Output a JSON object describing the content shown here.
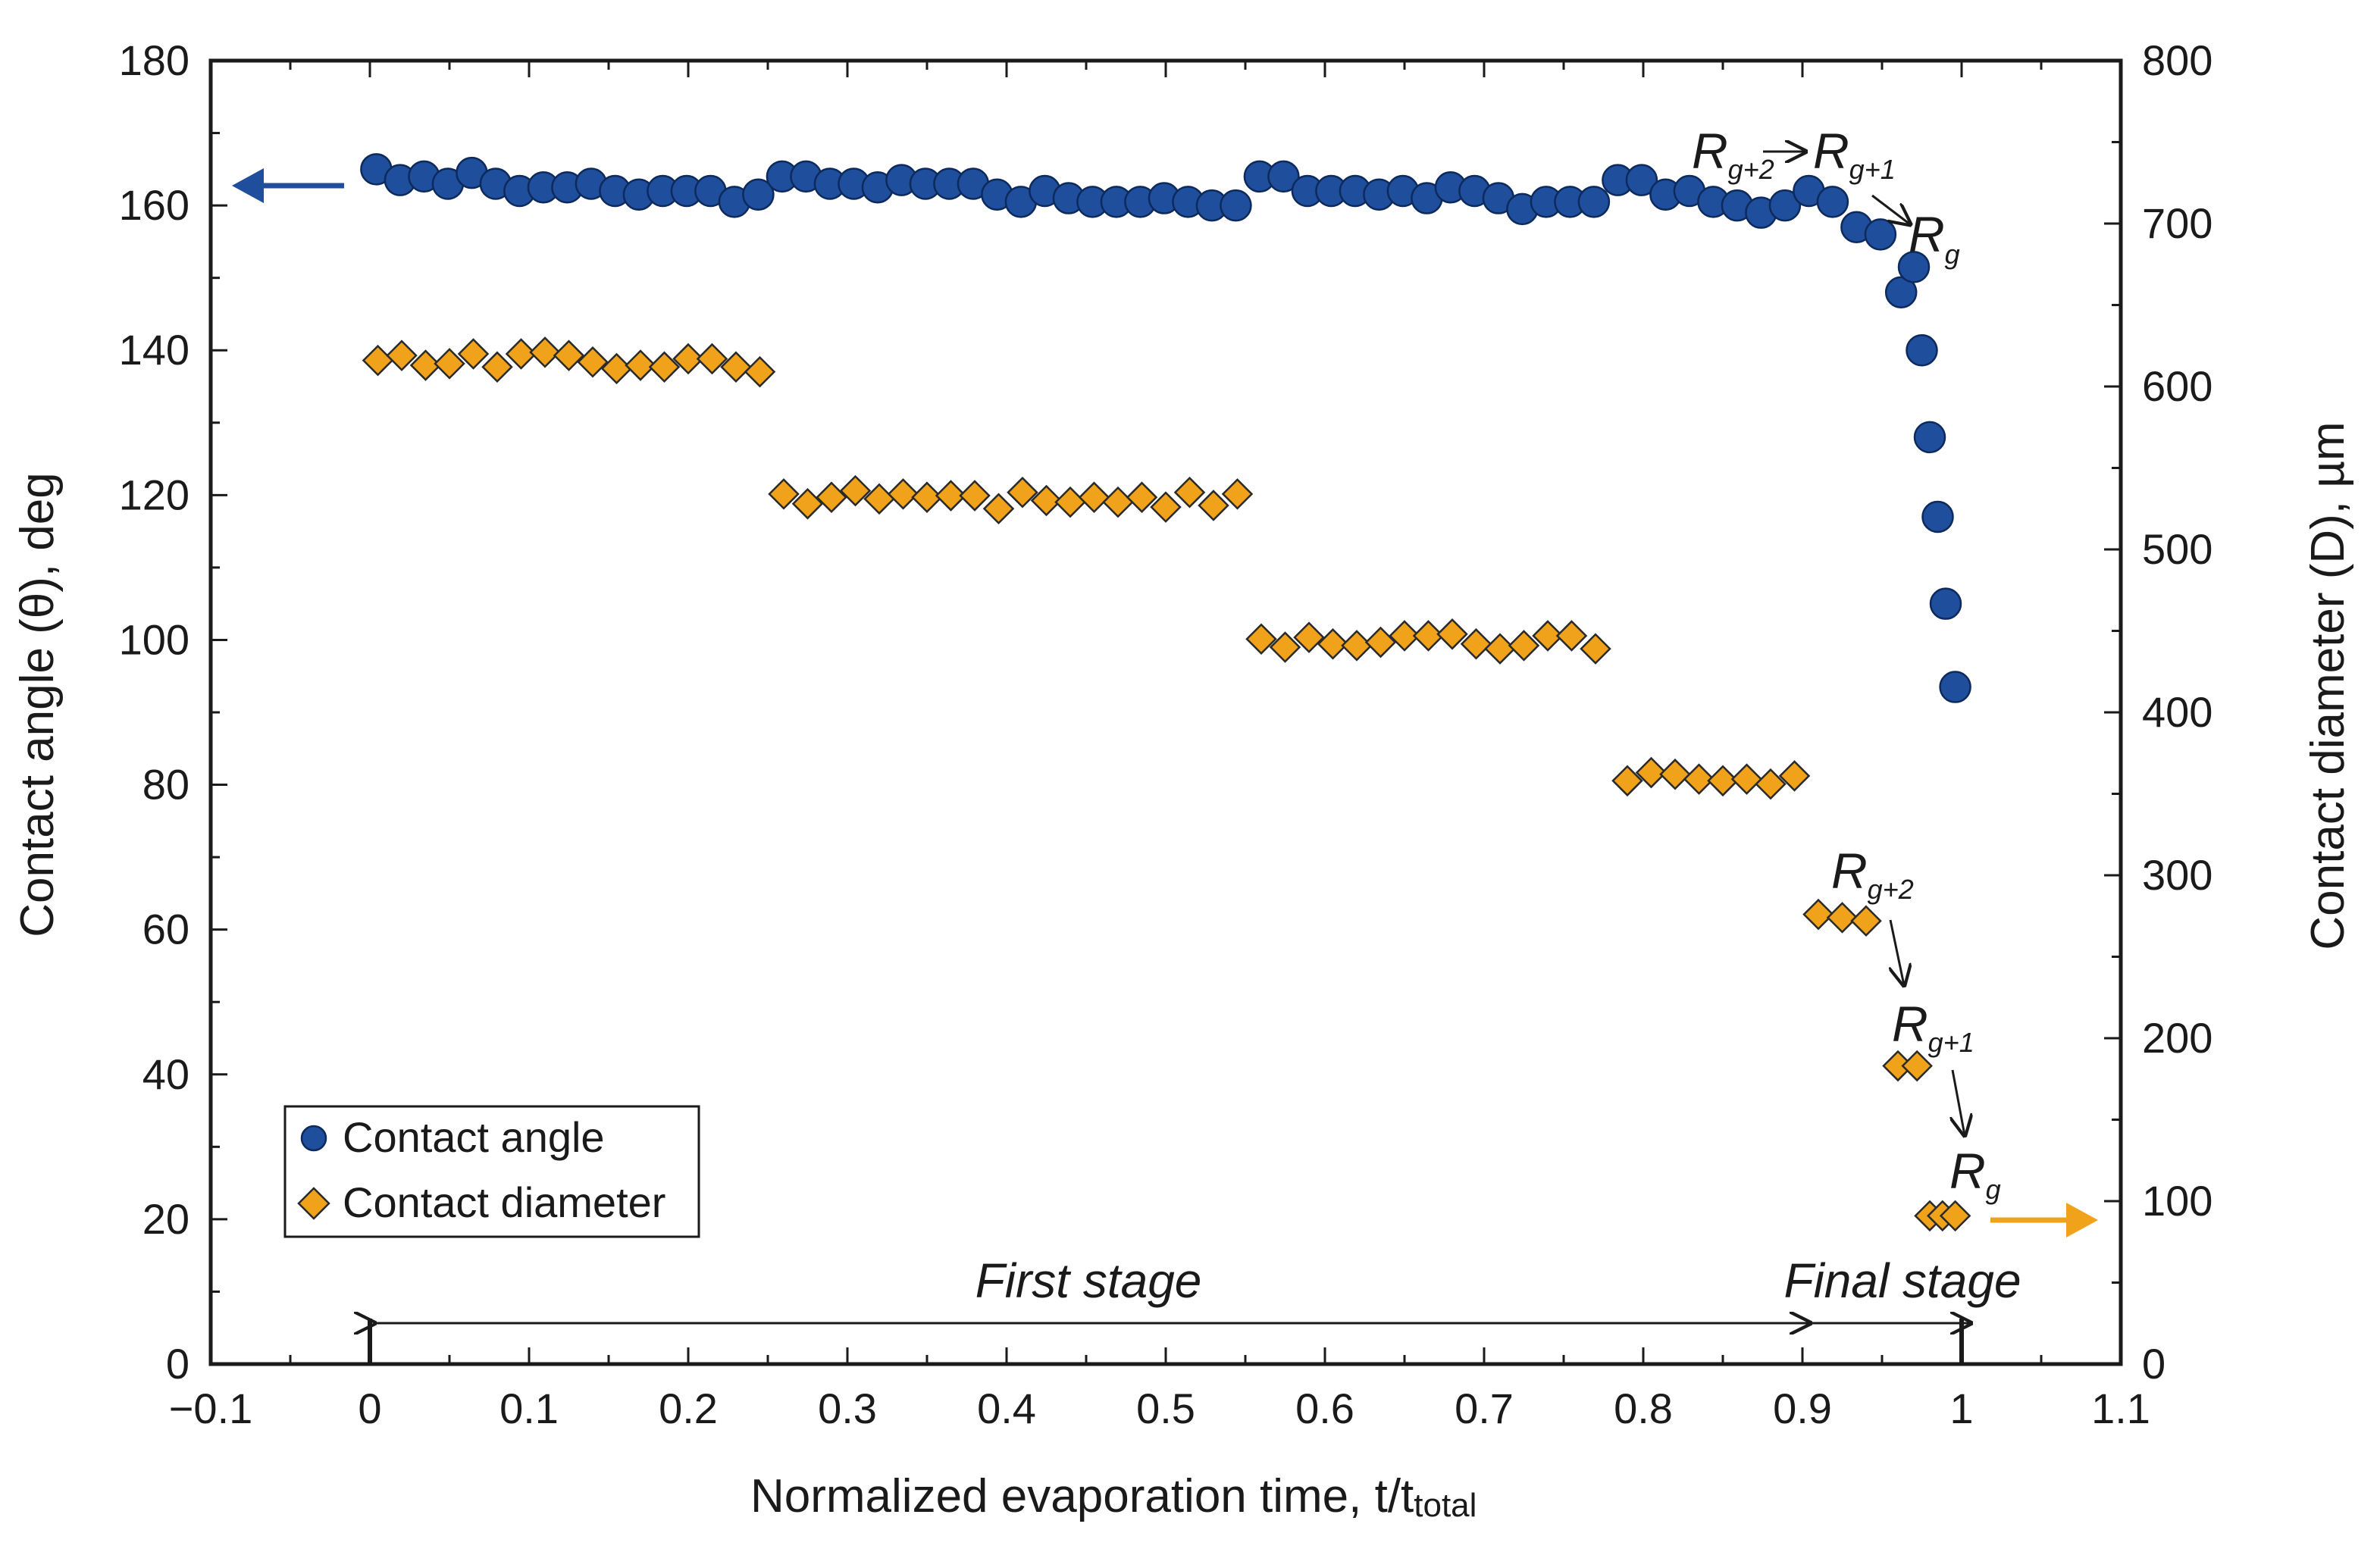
{
  "chart_data": {
    "type": "scatter",
    "xlabel": "Normalized evaporation time, t/t",
    "xlabel_subscript": "total",
    "ylabel_left": "Contact angle (θ), deg",
    "ylabel_right": "Contact diameter (D), µm",
    "xlim": [
      -0.1,
      1.1
    ],
    "ylim_left": [
      0,
      180
    ],
    "ylim_right": [
      0,
      800
    ],
    "x_ticks": [
      -0.1,
      0,
      0.1,
      0.2,
      0.3,
      0.4,
      0.5,
      0.6,
      0.7,
      0.8,
      0.9,
      1,
      1.1
    ],
    "x_tick_labels": [
      "−0.1",
      "0",
      "0.1",
      "0.2",
      "0.3",
      "0.4",
      "0.5",
      "0.6",
      "0.7",
      "0.8",
      "0.9",
      "1",
      "1.1"
    ],
    "y_left_ticks": [
      0,
      20,
      40,
      60,
      80,
      100,
      120,
      140,
      160,
      180
    ],
    "y_left_tick_labels": [
      "0",
      "20",
      "40",
      "60",
      "80",
      "100",
      "120",
      "140",
      "160",
      "180"
    ],
    "y_right_ticks": [
      0,
      100,
      200,
      300,
      400,
      500,
      600,
      700,
      800
    ],
    "y_right_tick_labels": [
      "0",
      "100",
      "200",
      "300",
      "400",
      "500",
      "600",
      "700",
      "800"
    ],
    "colors": {
      "angle_fill": "#1f4e9c",
      "angle_stroke": "#0d2a5c",
      "diameter_fill": "#f0a21b",
      "diameter_stroke": "#2a2a2a",
      "left_arrow": "#1f4e9c",
      "right_arrow": "#f0a21b"
    },
    "series": [
      {
        "name": "Contact angle",
        "axis": "left",
        "marker": "circle",
        "x": [
          0.004,
          0.019,
          0.034,
          0.049,
          0.064,
          0.079,
          0.094,
          0.109,
          0.124,
          0.139,
          0.154,
          0.169,
          0.184,
          0.199,
          0.214,
          0.229,
          0.244,
          0.259,
          0.274,
          0.289,
          0.304,
          0.319,
          0.334,
          0.349,
          0.364,
          0.379,
          0.394,
          0.409,
          0.424,
          0.439,
          0.454,
          0.469,
          0.484,
          0.499,
          0.514,
          0.529,
          0.544,
          0.559,
          0.574,
          0.589,
          0.604,
          0.619,
          0.634,
          0.649,
          0.664,
          0.679,
          0.694,
          0.709,
          0.724,
          0.739,
          0.754,
          0.769,
          0.784,
          0.799,
          0.814,
          0.829,
          0.844,
          0.859,
          0.874,
          0.889,
          0.904,
          0.919,
          0.934,
          0.949,
          0.962,
          0.97,
          0.975,
          0.98,
          0.985,
          0.99,
          0.996
        ],
        "y": [
          165,
          163.5,
          164,
          163,
          164.5,
          163,
          162,
          162.5,
          162.5,
          163,
          162,
          161.5,
          162,
          162,
          162,
          160.5,
          161.5,
          164,
          164,
          163,
          163,
          162.5,
          163.5,
          163,
          163,
          163,
          161.5,
          160.5,
          162,
          161,
          160.5,
          160.5,
          160.5,
          161,
          160.5,
          160,
          160,
          164,
          164,
          162,
          162,
          162,
          161.5,
          162,
          161,
          162.5,
          162,
          161,
          159.5,
          160.5,
          160.5,
          160.5,
          163.5,
          163.5,
          161.5,
          162,
          160.5,
          160,
          159,
          160,
          162,
          160.5,
          157,
          156,
          148,
          151.5,
          140,
          128,
          117,
          105,
          93.5
        ]
      },
      {
        "name": "Contact diameter",
        "axis": "right",
        "marker": "diamond",
        "x": [
          0.005,
          0.02,
          0.035,
          0.05,
          0.065,
          0.08,
          0.095,
          0.11,
          0.125,
          0.14,
          0.155,
          0.17,
          0.185,
          0.2,
          0.215,
          0.23,
          0.245,
          0.26,
          0.275,
          0.29,
          0.305,
          0.32,
          0.335,
          0.35,
          0.365,
          0.38,
          0.395,
          0.41,
          0.425,
          0.44,
          0.455,
          0.47,
          0.485,
          0.5,
          0.515,
          0.53,
          0.545,
          0.56,
          0.575,
          0.59,
          0.605,
          0.62,
          0.635,
          0.65,
          0.665,
          0.68,
          0.695,
          0.71,
          0.725,
          0.74,
          0.755,
          0.77,
          0.79,
          0.805,
          0.82,
          0.835,
          0.85,
          0.865,
          0.88,
          0.895,
          0.91,
          0.925,
          0.94,
          0.96,
          0.972,
          0.98,
          0.988,
          0.996
        ],
        "y": [
          616,
          619,
          613,
          614,
          620,
          612,
          620,
          621,
          619,
          615,
          611,
          613,
          612,
          617,
          617,
          612,
          609,
          534,
          528,
          532,
          536,
          531,
          534,
          532,
          533,
          533,
          525,
          535,
          530,
          529,
          532,
          529,
          532,
          526,
          535,
          527,
          534,
          445,
          440,
          446,
          442,
          441,
          443,
          447,
          447,
          448,
          442,
          439,
          441,
          447,
          447,
          439,
          358,
          363,
          362,
          359,
          358,
          359,
          356,
          361,
          276,
          274,
          272,
          183,
          183,
          91,
          91,
          91
        ]
      }
    ],
    "legend": {
      "position": "bottom-left",
      "entries": [
        "Contact angle",
        "Contact diameter"
      ]
    },
    "stage_annotations": [
      {
        "label": "First stage",
        "x_start": 0,
        "x_end": 0.9
      },
      {
        "label": "Final stage",
        "x_start": 0.9,
        "x_end": 1
      }
    ],
    "region_labels": {
      "angle_g2_main": "R",
      "angle_g2_sub": "g+2",
      "angle_g1_main": "R",
      "angle_g1_sub": "g+1",
      "angle_g_main": "R",
      "angle_g_sub": "g",
      "diam_g2_main": "R",
      "diam_g2_sub": "g+2",
      "diam_g1_main": "R",
      "diam_g1_sub": "g+1",
      "diam_g_main": "R",
      "diam_g_sub": "g"
    },
    "axis_indicators": [
      "left-arrow",
      "right-arrow"
    ]
  }
}
